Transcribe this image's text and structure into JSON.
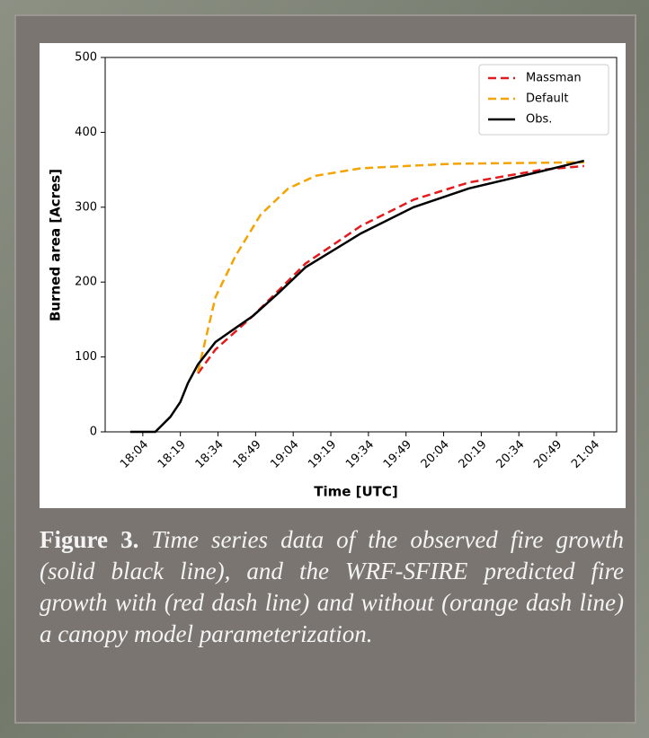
{
  "chart_data": {
    "type": "line",
    "xlabel": "Time [UTC]",
    "ylabel": "Burned area [Acres]",
    "xlim": [
      "17:49",
      "21:13"
    ],
    "xticks": [
      "18:04",
      "18:19",
      "18:34",
      "18:49",
      "19:04",
      "19:19",
      "19:34",
      "19:49",
      "20:04",
      "20:19",
      "20:34",
      "20:49",
      "21:04"
    ],
    "ylim": [
      0,
      500
    ],
    "yticks": [
      0,
      100,
      200,
      300,
      400,
      500
    ],
    "legend": "upper right",
    "series": [
      {
        "name": "Massman",
        "color": "#e41a1c",
        "dash": true,
        "x": [
          "18:26",
          "18:33",
          "18:48",
          "19:09",
          "19:31",
          "19:52",
          "20:14",
          "20:43",
          "21:00"
        ],
        "values": [
          78,
          110,
          155,
          225,
          275,
          310,
          333,
          350,
          355
        ]
      },
      {
        "name": "Default",
        "color": "#f5a300",
        "dash": true,
        "x": [
          "18:26",
          "18:33",
          "18:41",
          "18:51",
          "19:02",
          "19:13",
          "19:31",
          "20:07",
          "21:00"
        ],
        "values": [
          80,
          180,
          235,
          290,
          325,
          342,
          352,
          358,
          360
        ]
      },
      {
        "name": "Obs.",
        "color": "#000000",
        "dash": false,
        "x": [
          "17:59",
          "18:09",
          "18:15",
          "18:19",
          "18:22",
          "18:26",
          "18:33",
          "18:48",
          "18:58",
          "19:09",
          "19:31",
          "19:52",
          "20:14",
          "20:43",
          "21:00"
        ],
        "values": [
          0,
          0,
          20,
          40,
          65,
          90,
          120,
          155,
          185,
          220,
          265,
          300,
          325,
          348,
          362
        ]
      }
    ]
  },
  "caption": {
    "label": "Figure 3.",
    "text": "Time series data of the observed fire growth (solid black line), and the WRF-SFIRE predicted fire growth with (red dash line) and without (orange dash line) a canopy model parameterization."
  }
}
